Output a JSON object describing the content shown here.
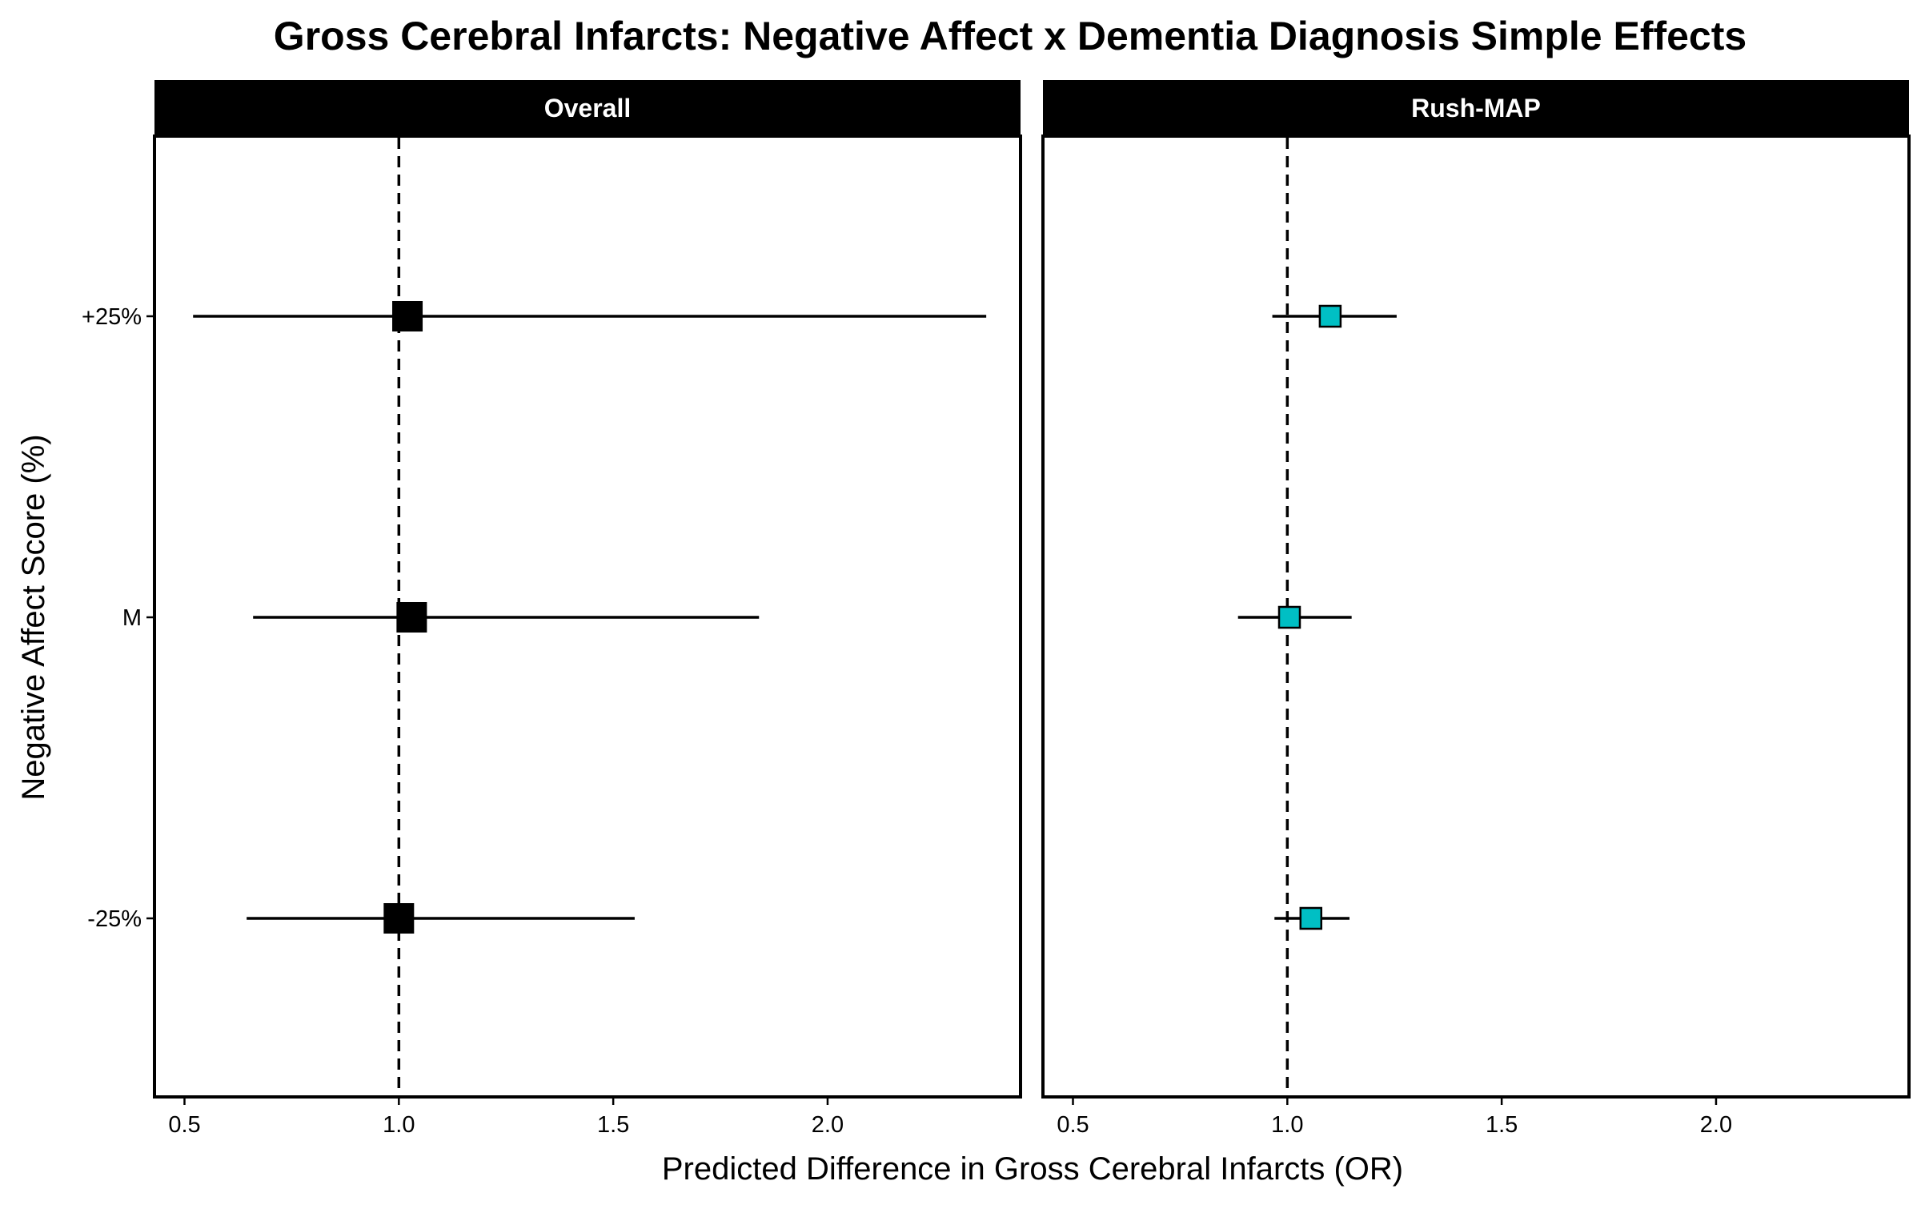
{
  "chart_data": {
    "type": "scatter",
    "subtype": "forest-plot",
    "title": "Gross Cerebral Infarcts: Negative Affect x Dementia Diagnosis Simple Effects",
    "xlabel": "Predicted Difference in Gross Cerebral Infarcts (OR)",
    "ylabel": "Negative Affect Score (%)",
    "x_ticks": [
      "0.5",
      "1.0",
      "1.5",
      "2.0"
    ],
    "x_tick_values": [
      0.5,
      1.0,
      1.5,
      2.0
    ],
    "xlim": [
      0.43,
      2.45
    ],
    "categories": [
      "+25%",
      "M",
      "-25%"
    ],
    "reference_line": 1.0,
    "grid": false,
    "colors": {
      "overall": "#000000",
      "rush_map": "#00BFC4",
      "strip_bg": "#000000"
    },
    "panels": [
      {
        "name": "Overall",
        "marker_color": "#000000",
        "points": [
          {
            "category": "+25%",
            "estimate": 1.02,
            "lower": 0.52,
            "upper": 2.37
          },
          {
            "category": "M",
            "estimate": 1.03,
            "lower": 0.66,
            "upper": 1.84
          },
          {
            "category": "-25%",
            "estimate": 1.0,
            "lower": 0.645,
            "upper": 1.55
          }
        ]
      },
      {
        "name": "Rush-MAP",
        "marker_color": "#00BFC4",
        "points": [
          {
            "category": "+25%",
            "estimate": 1.1,
            "lower": 0.965,
            "upper": 1.255
          },
          {
            "category": "M",
            "estimate": 1.005,
            "lower": 0.885,
            "upper": 1.15
          },
          {
            "category": "-25%",
            "estimate": 1.055,
            "lower": 0.97,
            "upper": 1.145
          }
        ]
      }
    ]
  }
}
